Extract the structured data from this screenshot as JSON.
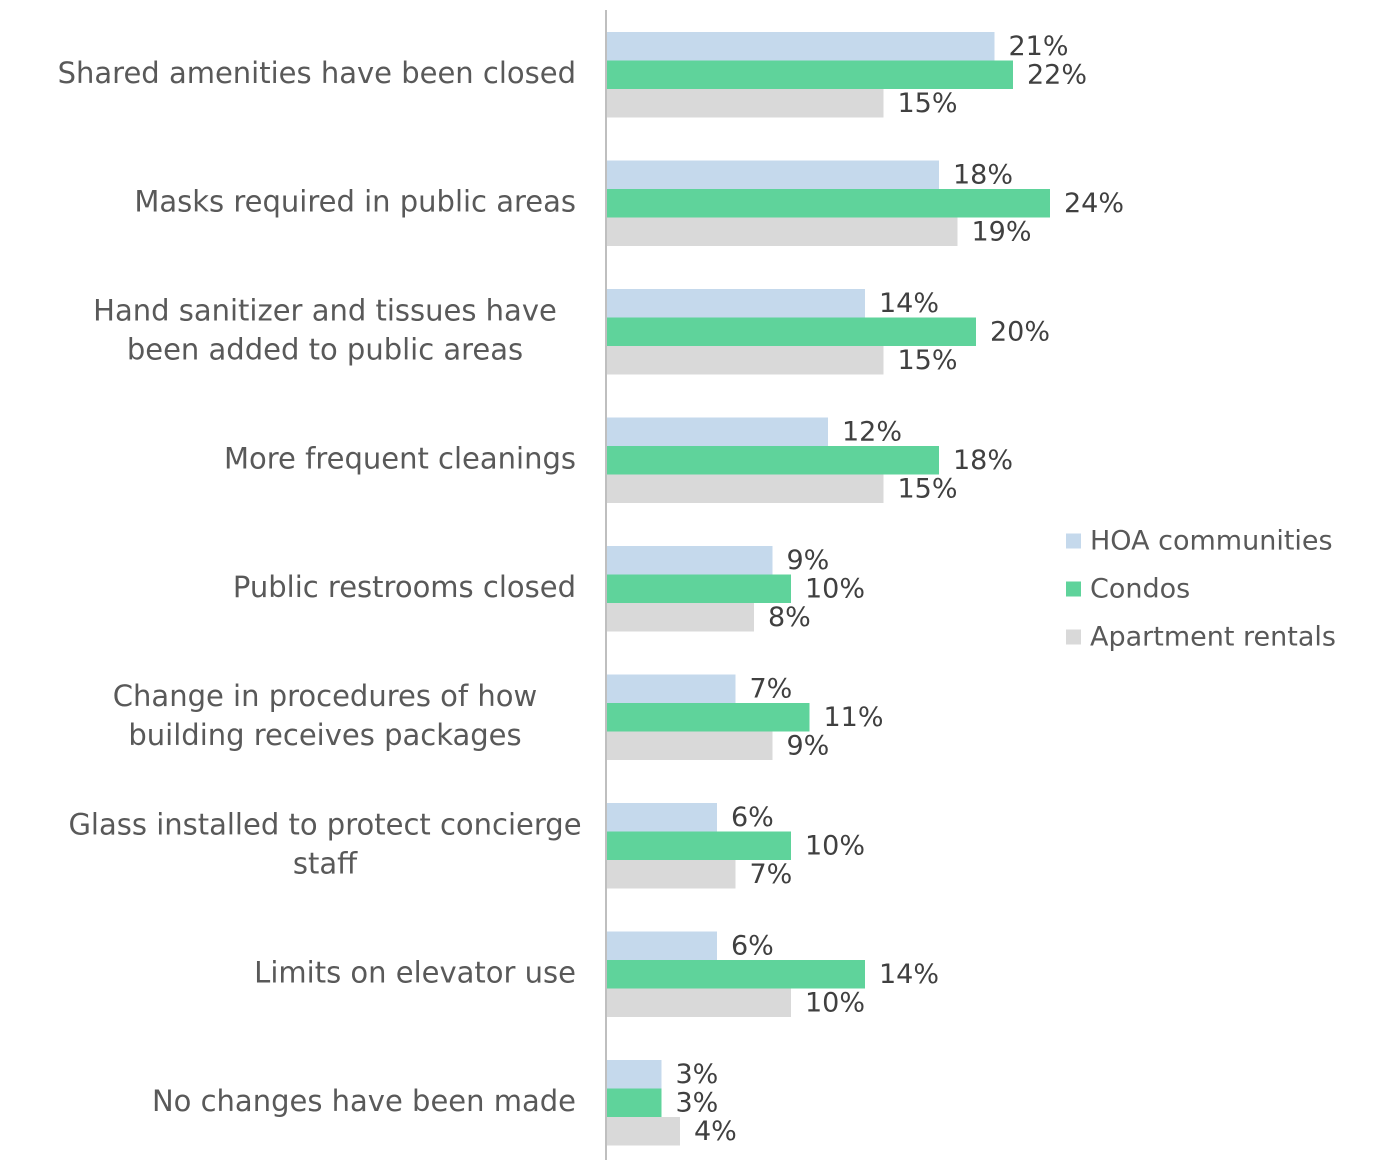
{
  "chart_data": {
    "type": "bar",
    "orientation": "horizontal",
    "categories": [
      "Shared amenities have been closed",
      "Masks required in public areas",
      "Hand sanitizer and tissues have been added to public areas",
      "More frequent cleanings",
      "Public restrooms closed",
      "Change in procedures of how building receives packages",
      "Glass installed to protect concierge staff",
      "Limits on elevator use",
      "No changes have been made"
    ],
    "category_lines": [
      [
        "Shared amenities have been closed"
      ],
      [
        "Masks required in public areas"
      ],
      [
        "Hand sanitizer and tissues have",
        "been added to public areas"
      ],
      [
        "More frequent cleanings"
      ],
      [
        "Public restrooms closed"
      ],
      [
        "Change in procedures of how",
        "building receives packages"
      ],
      [
        "Glass installed to protect concierge",
        "staff"
      ],
      [
        "Limits on elevator use"
      ],
      [
        "No changes have been made"
      ]
    ],
    "series": [
      {
        "name": "HOA communities",
        "color": "#c5d9ec",
        "values": [
          21,
          18,
          14,
          12,
          9,
          7,
          6,
          6,
          3
        ]
      },
      {
        "name": "Condos",
        "color": "#5fd39b",
        "values": [
          22,
          24,
          20,
          18,
          10,
          11,
          10,
          14,
          3
        ]
      },
      {
        "name": "Apartment rentals",
        "color": "#d9d9d9",
        "values": [
          15,
          19,
          15,
          15,
          8,
          9,
          7,
          10,
          4
        ]
      }
    ],
    "value_suffix": "%",
    "xlim": [
      0,
      24
    ],
    "grid": false,
    "legend_position": "right",
    "title": "",
    "xlabel": "",
    "ylabel": ""
  }
}
